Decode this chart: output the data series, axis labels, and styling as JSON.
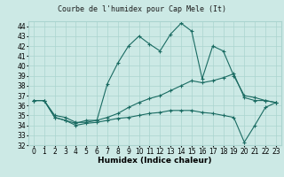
{
  "title": "Courbe de l'humidex pour Cap Mele (It)",
  "xlabel": "Humidex (Indice chaleur)",
  "xlim": [
    -0.5,
    23.5
  ],
  "ylim": [
    32,
    44.5
  ],
  "yticks": [
    32,
    33,
    34,
    35,
    36,
    37,
    38,
    39,
    40,
    41,
    42,
    43,
    44
  ],
  "xticks": [
    0,
    1,
    2,
    3,
    4,
    5,
    6,
    7,
    8,
    9,
    10,
    11,
    12,
    13,
    14,
    15,
    16,
    17,
    18,
    19,
    20,
    21,
    22,
    23
  ],
  "bg_color": "#cce9e5",
  "grid_color": "#aad4cf",
  "line_color": "#1a6b62",
  "line1_y": [
    36.5,
    36.5,
    35.0,
    34.8,
    34.3,
    34.3,
    34.5,
    38.2,
    40.3,
    42.0,
    43.0,
    42.2,
    41.5,
    43.2,
    44.3,
    43.5,
    38.7,
    42.0,
    41.5,
    39.0,
    37.0,
    36.8,
    36.5,
    36.3
  ],
  "line2_y": [
    36.5,
    36.5,
    34.8,
    34.5,
    34.2,
    34.5,
    34.5,
    34.8,
    35.2,
    35.8,
    36.3,
    36.7,
    37.0,
    37.5,
    38.0,
    38.5,
    38.3,
    38.5,
    38.8,
    39.2,
    36.8,
    36.5,
    36.5,
    36.3
  ],
  "line3_y": [
    36.5,
    36.5,
    34.8,
    34.5,
    34.0,
    34.2,
    34.3,
    34.5,
    34.7,
    34.8,
    35.0,
    35.2,
    35.3,
    35.5,
    35.5,
    35.5,
    35.3,
    35.2,
    35.0,
    34.8,
    32.3,
    34.0,
    35.8,
    36.3
  ],
  "marker": "+",
  "marker_size": 3.5,
  "line_width": 0.8,
  "title_fontsize": 6,
  "label_fontsize": 6.5,
  "tick_fontsize": 5.5
}
